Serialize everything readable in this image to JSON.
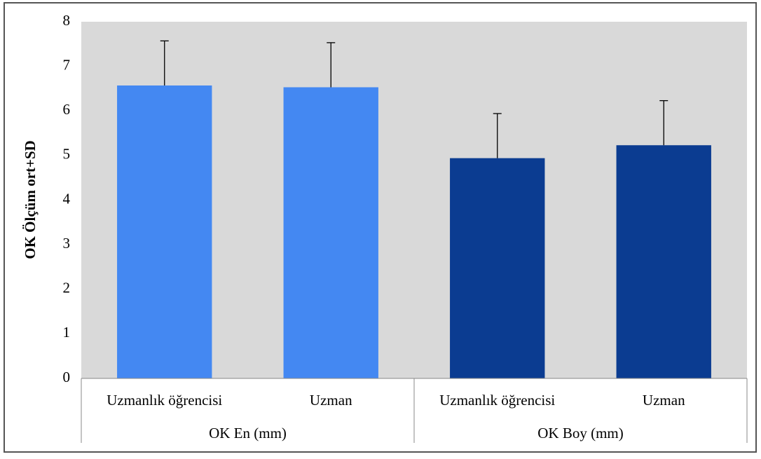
{
  "chart_data": {
    "type": "bar",
    "y_label": "OK Ölçüm ort+SD",
    "categories": [
      "Uzmanlık öğrencisi",
      "Uzman",
      "Uzmanlık öğrencisi",
      "Uzman"
    ],
    "groups": [
      "OK En (mm)",
      "OK Boy (mm)"
    ],
    "values": [
      6.57,
      6.53,
      4.94,
      5.23
    ],
    "errors": [
      1.0,
      1.0,
      1.0,
      1.0
    ],
    "colors": [
      "#4488f2",
      "#4488f2",
      "#0b3c91",
      "#0b3c91"
    ],
    "ylim": [
      0,
      8
    ],
    "yticks": [
      0,
      1,
      2,
      3,
      4,
      5,
      6,
      7,
      8
    ],
    "plot_background": "#d9d9d9"
  }
}
